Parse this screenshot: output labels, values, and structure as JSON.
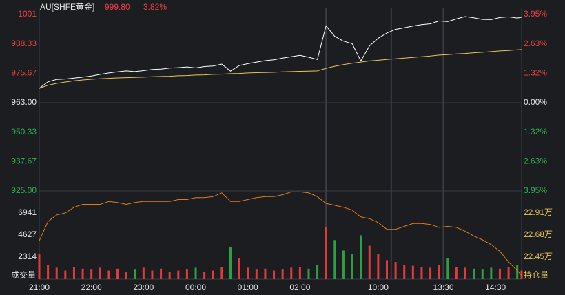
{
  "header": {
    "symbol": "AU[SHFE黄金]",
    "price": "999.80",
    "change": "3.82%"
  },
  "chart_data": {
    "type": "intraday",
    "xlim": [
      0,
      555
    ],
    "xticks": [
      {
        "value": 0,
        "label": "21:00"
      },
      {
        "value": 60,
        "label": "22:00"
      },
      {
        "value": 120,
        "label": "23:00"
      },
      {
        "value": 180,
        "label": "00:00"
      },
      {
        "value": 240,
        "label": "01:00"
      },
      {
        "value": 300,
        "label": "02:00"
      },
      {
        "value": 390,
        "label": "10:00"
      },
      {
        "value": 465,
        "label": "13:30"
      },
      {
        "value": 525,
        "label": "14:30"
      }
    ],
    "session_breaks": [
      330,
      405,
      465
    ],
    "x": [
      0,
      10,
      20,
      30,
      40,
      50,
      60,
      70,
      80,
      90,
      100,
      110,
      120,
      130,
      140,
      150,
      160,
      170,
      180,
      190,
      200,
      210,
      220,
      230,
      240,
      250,
      260,
      270,
      280,
      290,
      300,
      310,
      320,
      330,
      340,
      350,
      360,
      370,
      380,
      390,
      400,
      410,
      420,
      430,
      440,
      450,
      460,
      470,
      480,
      490,
      500,
      510,
      520,
      530,
      540,
      550,
      555
    ],
    "price_panel": {
      "ylim": [
        925,
        1001
      ],
      "base": 963,
      "yticks": [
        1001,
        988.33,
        975.67,
        {
          "value": 963,
          "label": "963.00"
        },
        950.33,
        937.67,
        {
          "value": 925,
          "label": "925.00"
        }
      ],
      "y2lim": [
        -3.95,
        3.95
      ],
      "y2ticks": [
        {
          "value": 3.95,
          "label": "3.95%"
        },
        {
          "value": 2.63,
          "label": "2.63%"
        },
        {
          "value": 1.32,
          "label": "1.32%"
        },
        {
          "value": 0,
          "label": "0.00%"
        },
        {
          "value": -1.32,
          "label": "1.32%"
        },
        {
          "value": -2.63,
          "label": "2.63%"
        },
        {
          "value": -3.95,
          "label": "3.95%"
        }
      ],
      "series": [
        {
          "color": "#ffffff",
          "values": [
            969.2,
            972.0,
            973.0,
            973.2,
            973.6,
            974.0,
            974.5,
            975.2,
            975.8,
            976.3,
            976.7,
            976.4,
            976.8,
            977.3,
            977.5,
            977.9,
            978.1,
            978.4,
            978.0,
            978.6,
            978.8,
            979.6,
            976.6,
            979.0,
            979.8,
            980.5,
            981.1,
            981.5,
            982.2,
            982.8,
            983.4,
            982.6,
            981.6,
            996.1,
            991.6,
            989.5,
            988.4,
            981.0,
            987.5,
            990.8,
            993.0,
            994.6,
            995.3,
            996.0,
            996.6,
            997.0,
            998.2,
            997.9,
            999.1,
            1000.1,
            999.6,
            998.9,
            998.8,
            999.7,
            1000.0,
            999.5,
            999.8
          ]
        },
        {
          "color": "#e8c45a",
          "values": [
            969.2,
            970.5,
            971.3,
            971.9,
            972.4,
            972.8,
            973.1,
            973.3,
            973.5,
            973.7,
            973.8,
            973.9,
            974.0,
            974.2,
            974.3,
            974.4,
            974.6,
            974.7,
            974.9,
            975.0,
            975.2,
            975.3,
            975.5,
            975.6,
            975.8,
            975.9,
            976.0,
            976.1,
            976.3,
            976.4,
            976.5,
            976.6,
            976.7,
            977.8,
            978.7,
            979.4,
            980.0,
            980.5,
            981.0,
            981.3,
            981.6,
            981.9,
            982.2,
            982.5,
            982.8,
            983.1,
            983.5,
            983.7,
            984.0,
            984.2,
            984.5,
            984.7,
            985.0,
            985.3,
            985.5,
            985.8,
            985.9
          ]
        }
      ]
    },
    "volume_panel": {
      "label": "成交量",
      "ylim": [
        0,
        9255
      ],
      "yticks": [
        6941,
        4627,
        2314
      ],
      "up_color": "#e23a3a",
      "down_color": "#2ea043",
      "values": [
        2600,
        1500,
        1200,
        900,
        1300,
        1100,
        1000,
        1200,
        900,
        1100,
        800,
        1000,
        1200,
        900,
        1100,
        800,
        900,
        1000,
        1200,
        800,
        900,
        1300,
        3400,
        2200,
        1200,
        1000,
        1100,
        900,
        1000,
        1200,
        1300,
        1100,
        1500,
        5500,
        4100,
        3000,
        2600,
        4600,
        3500,
        2600,
        2000,
        1800,
        1500,
        1400,
        1300,
        1200,
        1500,
        2200,
        1300,
        1200,
        1100,
        1000,
        1200,
        1100,
        1300,
        1500,
        900
      ]
    },
    "oi_panel": {
      "label": "持仓量",
      "color": "#e07b20",
      "y2lim": [
        22.22,
        23.14
      ],
      "y2ticks": [
        {
          "value": 22.91,
          "label": "22.91万"
        },
        {
          "value": 22.68,
          "label": "22.68万"
        },
        {
          "value": 22.45,
          "label": "22.45万"
        }
      ],
      "values": [
        22.62,
        22.82,
        22.89,
        22.91,
        22.97,
        23.0,
        23.0,
        23.0,
        23.03,
        23.02,
        23.0,
        23.02,
        23.03,
        23.03,
        23.03,
        23.03,
        23.05,
        23.05,
        23.07,
        23.07,
        23.08,
        23.12,
        23.03,
        23.03,
        23.05,
        23.07,
        23.08,
        23.08,
        23.1,
        23.13,
        23.13,
        23.12,
        23.08,
        23.01,
        22.99,
        22.97,
        22.94,
        22.87,
        22.85,
        22.81,
        22.74,
        22.74,
        22.77,
        22.8,
        22.8,
        22.79,
        22.76,
        22.77,
        22.76,
        22.72,
        22.67,
        22.63,
        22.58,
        22.51,
        22.4,
        22.31,
        22.26
      ]
    }
  }
}
